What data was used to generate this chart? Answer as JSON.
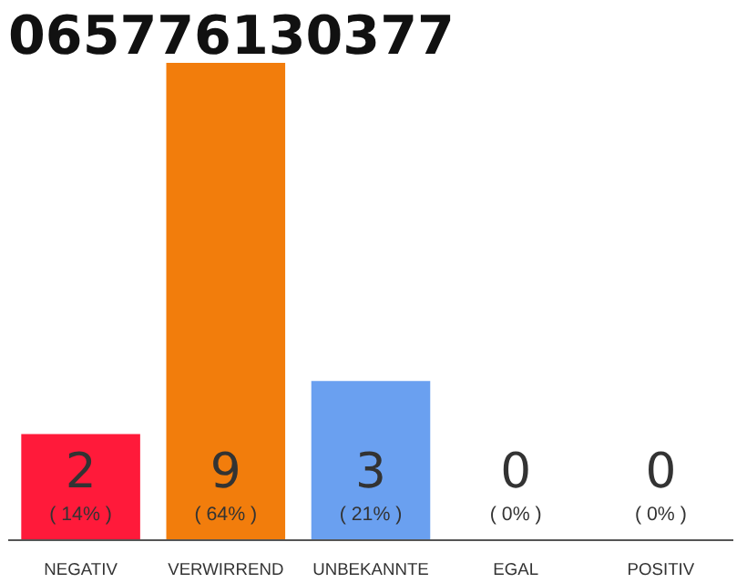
{
  "chart_data": {
    "type": "bar",
    "title": "065776130377",
    "categories": [
      "NEGATIV",
      "VERWIRREND",
      "UNBEKANNTE",
      "EGAL",
      "POSITIV"
    ],
    "values": [
      2,
      9,
      3,
      0,
      0
    ],
    "colors": [
      "#ff1a3a",
      "#f27d0c",
      "#6aa0f0",
      "#bbbbbb",
      "#bbbbbb"
    ],
    "data_labels": true,
    "annotations": [
      {
        "text": "( 14% )",
        "x": "NEGATIV",
        "y": 0
      },
      {
        "text": "( 64% )",
        "x": "VERWIRREND",
        "y": 0
      },
      {
        "text": "( 21% )",
        "x": "UNBEKANNTE",
        "y": 0
      },
      {
        "text": "( 0% )",
        "x": "EGAL",
        "y": 0
      },
      {
        "text": "( 0% )",
        "x": "POSITIV",
        "y": 0
      }
    ],
    "grid": false
  }
}
